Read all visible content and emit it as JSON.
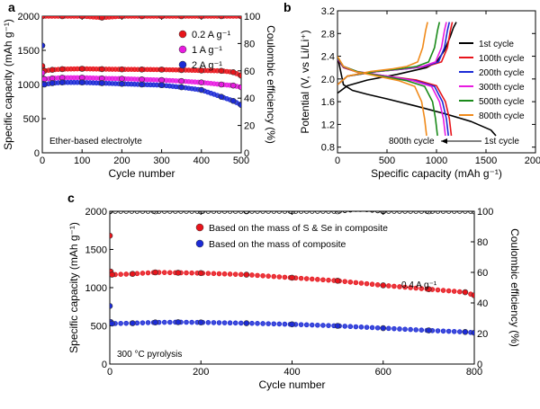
{
  "chart_data": [
    {
      "panel": "a",
      "type": "scatter",
      "xlabel": "Cycle number",
      "ylabel": "Specific capacity (mAh g⁻¹)",
      "ylabel_right": "Coulombic efficiency (%)",
      "annotation": "Ether-based electrolyte",
      "xlim": [
        0,
        500
      ],
      "ylim": [
        0,
        2000
      ],
      "ylim_right": [
        0,
        100
      ],
      "xticks": [
        0,
        100,
        200,
        300,
        400,
        500
      ],
      "yticks": [
        0,
        500,
        1000,
        1500,
        2000
      ],
      "yticks_right": [
        0,
        20,
        40,
        60,
        80,
        100
      ],
      "legend_position": "top-right",
      "series": [
        {
          "name": "0.2 A g⁻¹",
          "color": "#e8141b",
          "axis": "left",
          "x": [
            0,
            2,
            5,
            25,
            50,
            100,
            150,
            200,
            250,
            300,
            350,
            400,
            450,
            480,
            500
          ],
          "y": [
            1270,
            1210,
            1200,
            1215,
            1225,
            1230,
            1225,
            1222,
            1220,
            1218,
            1212,
            1205,
            1200,
            1180,
            1130
          ]
        },
        {
          "name": "1 A g⁻¹",
          "color": "#e81be0",
          "axis": "left",
          "x": [
            0,
            2,
            5,
            25,
            50,
            100,
            150,
            200,
            250,
            300,
            350,
            400,
            450,
            480,
            500
          ],
          "y": [
            1170,
            1090,
            1080,
            1090,
            1100,
            1100,
            1090,
            1085,
            1075,
            1065,
            1050,
            1030,
            1000,
            985,
            960
          ]
        },
        {
          "name": "2 A g⁻¹",
          "color": "#1c2bd6",
          "axis": "left",
          "x": [
            0,
            2,
            5,
            25,
            50,
            100,
            150,
            200,
            250,
            300,
            350,
            400,
            450,
            480,
            500
          ],
          "y": [
            1570,
            1010,
            1000,
            1020,
            1030,
            1030,
            1020,
            1010,
            1000,
            990,
            960,
            920,
            820,
            760,
            700
          ]
        },
        {
          "name": "",
          "color": "#e8141b",
          "axis": "right",
          "x": [
            0,
            50,
            100,
            150,
            200,
            250,
            300,
            350,
            400,
            450,
            500
          ],
          "y": [
            100,
            100,
            100,
            99,
            100,
            100,
            100,
            100,
            100,
            100,
            100
          ]
        }
      ]
    },
    {
      "panel": "b",
      "type": "line",
      "xlabel": "Specific capacity (mAh g⁻¹)",
      "ylabel": "Potential (V, vs Li/Li⁺)",
      "xlim": [
        0,
        2000
      ],
      "ylim": [
        0.7,
        3.2
      ],
      "xticks": [
        0,
        500,
        1000,
        1500,
        2000
      ],
      "yticks": [
        0.8,
        1.2,
        1.6,
        2.0,
        2.4,
        2.8,
        3.2
      ],
      "legend_position": "top-right",
      "annotation_left": "800th cycle",
      "annotation_right": "1st cycle",
      "series": [
        {
          "name": "1st cycle",
          "color": "#000000",
          "discharge": {
            "x": [
              0,
              60,
              150,
              300,
              500,
              800,
              1100,
              1350,
              1550,
              1600
            ],
            "y": [
              2.4,
              1.9,
              1.8,
              1.73,
              1.65,
              1.52,
              1.38,
              1.25,
              1.1,
              1.0
            ]
          },
          "charge": {
            "x": [
              0,
              100,
              300,
              600,
              900,
              1000,
              1080,
              1140,
              1170,
              1200
            ],
            "y": [
              1.75,
              1.88,
              1.98,
              2.08,
              2.2,
              2.3,
              2.5,
              2.75,
              2.9,
              3.0
            ]
          }
        },
        {
          "name": "100th cycle",
          "color": "#e8141b",
          "discharge": {
            "x": [
              0,
              60,
              200,
              500,
              800,
              1000,
              1090,
              1130,
              1150
            ],
            "y": [
              2.35,
              2.2,
              2.12,
              2.05,
              1.98,
              1.88,
              1.6,
              1.3,
              1.0
            ]
          },
          "charge": {
            "x": [
              0,
              100,
              400,
              700,
              900,
              1050,
              1110,
              1140,
              1160
            ],
            "y": [
              1.9,
              2.05,
              2.13,
              2.18,
              2.22,
              2.3,
              2.55,
              2.85,
              3.0
            ]
          }
        },
        {
          "name": "200th cycle",
          "color": "#1c2bd6",
          "discharge": {
            "x": [
              0,
              60,
              200,
              500,
              780,
              980,
              1060,
              1100,
              1120
            ],
            "y": [
              2.36,
              2.21,
              2.12,
              2.05,
              1.97,
              1.87,
              1.6,
              1.3,
              1.0
            ]
          },
          "charge": {
            "x": [
              0,
              100,
              400,
              700,
              880,
              1020,
              1080,
              1110,
              1130
            ],
            "y": [
              1.9,
              2.05,
              2.13,
              2.18,
              2.22,
              2.3,
              2.55,
              2.85,
              3.0
            ]
          }
        },
        {
          "name": "300th cycle",
          "color": "#e81be0",
          "discharge": {
            "x": [
              0,
              60,
              200,
              500,
              760,
              950,
              1030,
              1070,
              1090
            ],
            "y": [
              2.37,
              2.22,
              2.13,
              2.05,
              1.97,
              1.87,
              1.6,
              1.3,
              1.0
            ]
          },
          "charge": {
            "x": [
              0,
              100,
              400,
              680,
              860,
              990,
              1050,
              1080,
              1100
            ],
            "y": [
              1.9,
              2.05,
              2.13,
              2.18,
              2.22,
              2.3,
              2.55,
              2.85,
              3.0
            ]
          }
        },
        {
          "name": "500th cycle",
          "color": "#1a8a1a",
          "discharge": {
            "x": [
              0,
              60,
              200,
              450,
              700,
              880,
              960,
              990,
              1010
            ],
            "y": [
              2.38,
              2.22,
              2.13,
              2.05,
              1.97,
              1.87,
              1.6,
              1.3,
              1.0
            ]
          },
          "charge": {
            "x": [
              0,
              100,
              380,
              640,
              800,
              920,
              980,
              1010,
              1030
            ],
            "y": [
              1.9,
              2.05,
              2.13,
              2.18,
              2.22,
              2.3,
              2.55,
              2.85,
              3.0
            ]
          }
        },
        {
          "name": "800th cycle",
          "color": "#f08a1a",
          "discharge": {
            "x": [
              0,
              60,
              180,
              400,
              620,
              780,
              850,
              880,
              900
            ],
            "y": [
              2.4,
              2.22,
              2.13,
              2.05,
              1.97,
              1.87,
              1.6,
              1.3,
              1.0
            ]
          },
          "charge": {
            "x": [
              0,
              100,
              330,
              560,
              700,
              810,
              860,
              890,
              910
            ],
            "y": [
              1.9,
              2.05,
              2.13,
              2.18,
              2.22,
              2.3,
              2.55,
              2.85,
              3.0
            ]
          }
        }
      ]
    },
    {
      "panel": "c",
      "type": "scatter",
      "xlabel": "Cycle number",
      "ylabel": "Specific capacity (mAh g⁻¹)",
      "ylabel_right": "Coulombic efficiency (%)",
      "annotation": "300 °C pyrolysis",
      "rate_label": "0.4 A g⁻¹",
      "xlim": [
        0,
        800
      ],
      "ylim": [
        0,
        2000
      ],
      "ylim_right": [
        0,
        100
      ],
      "xticks": [
        0,
        200,
        400,
        600,
        800
      ],
      "yticks": [
        0,
        500,
        1000,
        1500,
        2000
      ],
      "yticks_right": [
        0,
        20,
        40,
        60,
        80,
        100
      ],
      "legend_position": "top-left",
      "series": [
        {
          "name": "Based on the mass of S & Se in composite",
          "color": "#e8141b",
          "axis": "left",
          "x": [
            0,
            2,
            5,
            50,
            100,
            150,
            200,
            300,
            400,
            500,
            600,
            700,
            780,
            800
          ],
          "y": [
            1680,
            1210,
            1170,
            1180,
            1200,
            1195,
            1190,
            1170,
            1130,
            1090,
            1030,
            980,
            940,
            900
          ]
        },
        {
          "name": "Based on the mass of composite",
          "color": "#1c2bd6",
          "axis": "left",
          "x": [
            0,
            2,
            5,
            50,
            100,
            150,
            200,
            300,
            400,
            500,
            600,
            700,
            780,
            800
          ],
          "y": [
            760,
            550,
            530,
            535,
            545,
            548,
            545,
            535,
            520,
            500,
            470,
            440,
            420,
            410
          ]
        },
        {
          "name": "",
          "color": "#000000",
          "axis": "right",
          "x": [
            0,
            100,
            200,
            300,
            400,
            500,
            550,
            600,
            700,
            800
          ],
          "y": [
            100,
            100,
            100,
            100,
            100,
            100,
            101.5,
            100,
            100,
            100
          ]
        }
      ]
    }
  ]
}
